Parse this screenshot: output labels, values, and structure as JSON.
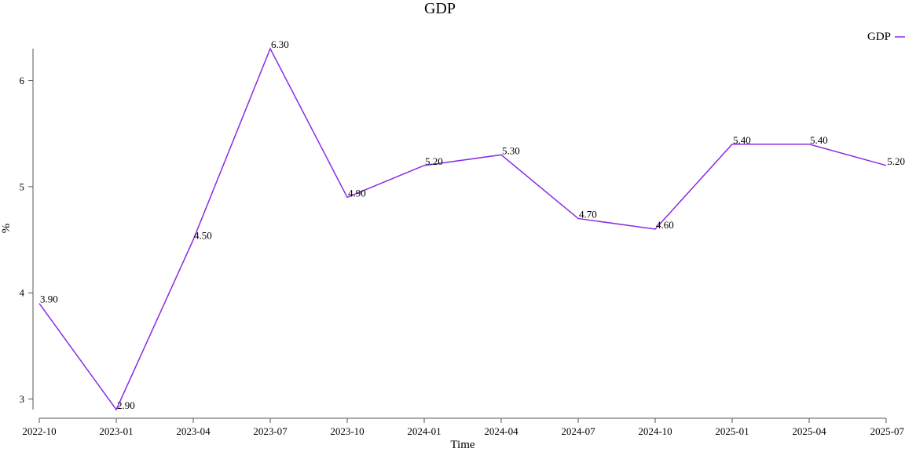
{
  "chart_data": {
    "type": "line",
    "title": "GDP",
    "xlabel": "Time",
    "ylabel": "%",
    "categories": [
      "2022-10",
      "2023-01",
      "2023-04",
      "2023-07",
      "2023-10",
      "2024-01",
      "2024-04",
      "2024-07",
      "2024-10",
      "2025-01",
      "2025-04",
      "2025-07"
    ],
    "series": [
      {
        "name": "GDP",
        "color": "#8a2be2",
        "values": [
          3.9,
          2.9,
          4.5,
          6.3,
          4.9,
          5.2,
          5.3,
          4.7,
          4.6,
          5.4,
          5.4,
          5.2
        ],
        "labels": [
          "3.90",
          "2.90",
          "4.50",
          "6.30",
          "4.90",
          "5.20",
          "5.30",
          "4.70",
          "4.60",
          "5.40",
          "5.40",
          "5.20"
        ]
      }
    ],
    "yticks": [
      "3",
      "4",
      "5",
      "6"
    ],
    "ylim": [
      2.9,
      6.3
    ],
    "grid": false,
    "legend_position": "top-right"
  }
}
